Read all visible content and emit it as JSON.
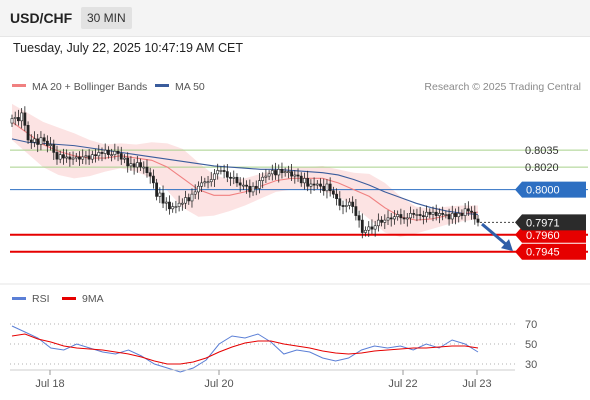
{
  "header": {
    "symbol": "USD/CHF",
    "timeframe": "30 MIN",
    "timestamp": "Tuesday, July 22, 2025 10:47:19 AM CET"
  },
  "legend": {
    "ma20_label": "MA 20 + Bollinger Bands",
    "ma50_label": "MA 50",
    "credit": "Research © 2025 Trading Central"
  },
  "rsi_legend": {
    "rsi_label": "RSI",
    "ma_label": "9MA"
  },
  "colors": {
    "up_candle": "#ffffff",
    "down_candle": "#222222",
    "ma20": "#f08080",
    "bollinger_fill": "#fbdede",
    "ma50": "#3a5c9c",
    "resistance": "#a8d08a",
    "pivot": "#2d6fc2",
    "support": "#e60000",
    "current_price": "#2b2b2b",
    "rsi": "#5b7fd6",
    "rsi_ma": "#e60000",
    "arrow": "#2f5ea8"
  },
  "chart_data": [
    {
      "type": "candlestick",
      "title": "USD/CHF",
      "timeframe": "30 MIN",
      "x_ticks": [
        "Jul 18",
        "Jul 20",
        "Jul 22",
        "Jul 23"
      ],
      "ylim": [
        0.7935,
        0.8075
      ],
      "levels": [
        {
          "value": "0.8035",
          "kind": "resistance",
          "style": "label"
        },
        {
          "value": "0.8020",
          "kind": "resistance",
          "style": "label"
        },
        {
          "value": "0.8000",
          "kind": "pivot",
          "style": "tag"
        },
        {
          "value": "0.7960",
          "kind": "support",
          "style": "tag"
        },
        {
          "value": "0.7945",
          "kind": "support",
          "style": "tag"
        }
      ],
      "current_price": "0.7971",
      "closes": [
        0.8063,
        0.8064,
        0.8061,
        0.8068,
        0.8057,
        0.8044,
        0.8042,
        0.8045,
        0.804,
        0.8046,
        0.8043,
        0.8039,
        0.804,
        0.8033,
        0.8027,
        0.8031,
        0.8028,
        0.8029,
        0.8027,
        0.8028,
        0.8029,
        0.8027,
        0.8029,
        0.803,
        0.8027,
        0.8031,
        0.803,
        0.8033,
        0.8032,
        0.8035,
        0.8031,
        0.8031,
        0.8034,
        0.8032,
        0.8027,
        0.8028,
        0.8021,
        0.8023,
        0.802,
        0.8024,
        0.802,
        0.802,
        0.8015,
        0.8012,
        0.8006,
        0.7994,
        0.7997,
        0.7988,
        0.7989,
        0.7983,
        0.7985,
        0.7985,
        0.7988,
        0.7988,
        0.7993,
        0.799,
        0.7996,
        0.7998,
        0.8003,
        0.8006,
        0.8007,
        0.8007,
        0.8009,
        0.8014,
        0.8017,
        0.8017,
        0.8016,
        0.8011,
        0.801,
        0.8011,
        0.8006,
        0.8004,
        0.8004,
        0.8003,
        0.7998,
        0.8003,
        0.8001,
        0.8008,
        0.8011,
        0.8012,
        0.8014,
        0.8017,
        0.8013,
        0.8018,
        0.8015,
        0.8016,
        0.8016,
        0.8012,
        0.8013,
        0.8012,
        0.8006,
        0.801,
        0.8003,
        0.8005,
        0.8004,
        0.8005,
        0.8003,
        0.7999,
        0.8005,
        0.7999,
        0.7996,
        0.7992,
        0.7986,
        0.7985,
        0.7986,
        0.7989,
        0.7985,
        0.7977,
        0.7973,
        0.7962,
        0.7964,
        0.7967,
        0.7965,
        0.7968,
        0.7973,
        0.7971,
        0.7973,
        0.7975,
        0.7974,
        0.7976,
        0.7978,
        0.7975,
        0.7974,
        0.7975,
        0.7979,
        0.7978,
        0.7978,
        0.7977,
        0.7976,
        0.798,
        0.7978,
        0.798,
        0.7977,
        0.7979,
        0.7978,
        0.7978,
        0.7974,
        0.7979,
        0.7976,
        0.7979,
        0.7977,
        0.7983,
        0.7981,
        0.798,
        0.7974,
        0.7971
      ],
      "series": [
        {
          "name": "MA 20",
          "values": [
            0.806,
            0.805,
            0.804,
            0.8034,
            0.803,
            0.8028,
            0.8028,
            0.803,
            0.8028,
            0.8026,
            0.802,
            0.801,
            0.8,
            0.7995,
            0.7995,
            0.7998,
            0.8003,
            0.8008,
            0.801,
            0.801,
            0.801,
            0.8006,
            0.8,
            0.7994,
            0.7984,
            0.7976,
            0.7973,
            0.7974,
            0.7977,
            0.7979,
            0.798
          ]
        },
        {
          "name": "MA 50",
          "values": [
            0.8045,
            0.8042,
            0.8041,
            0.804,
            0.8039,
            0.8037,
            0.8035,
            0.8033,
            0.8031,
            0.8029,
            0.8027,
            0.8025,
            0.8023,
            0.8021,
            0.802,
            0.8019,
            0.8018,
            0.8018,
            0.8017,
            0.8016,
            0.8015,
            0.8013,
            0.8009,
            0.8004,
            0.7998,
            0.7993,
            0.7988,
            0.7984,
            0.7981,
            0.7979,
            0.7978
          ]
        }
      ]
    },
    {
      "type": "line",
      "title": "RSI",
      "x_ticks": [
        "Jul 18",
        "Jul 20",
        "Jul 22",
        "Jul 23"
      ],
      "y_ticks": [
        "70",
        "50",
        "30"
      ],
      "ylim": [
        20,
        80
      ],
      "series": [
        {
          "name": "RSI",
          "values": [
            68,
            62,
            56,
            46,
            44,
            50,
            46,
            42,
            40,
            44,
            38,
            30,
            26,
            22,
            26,
            34,
            50,
            58,
            56,
            60,
            52,
            40,
            44,
            42,
            36,
            33,
            36,
            44,
            48,
            46,
            48,
            44,
            50,
            46,
            54,
            50,
            42
          ]
        },
        {
          "name": "9MA",
          "values": [
            58,
            60,
            55,
            52,
            48,
            46,
            45,
            44,
            42,
            40,
            37,
            33,
            30,
            30,
            32,
            36,
            42,
            47,
            51,
            53,
            53,
            50,
            48,
            46,
            43,
            41,
            40,
            41,
            43,
            44,
            45,
            46,
            46,
            47,
            48,
            48,
            46
          ]
        }
      ]
    }
  ]
}
